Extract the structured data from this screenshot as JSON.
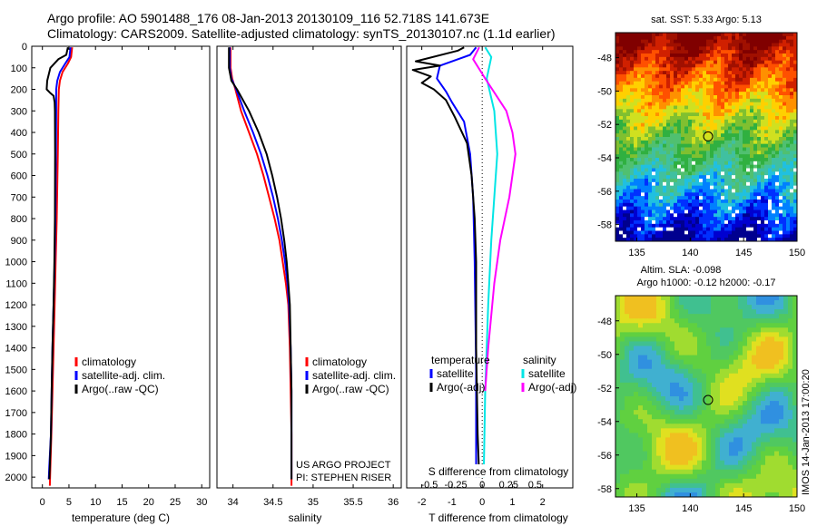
{
  "title_line1": "Argo profile: AO 5901488_176 08-Jan-2013 20130109_116 52.718S 141.673E",
  "title_line2": "Climatology: CARS2009. Satellite-adjusted climatology: synTS_20130107.nc (1.1d earlier)",
  "colors": {
    "climatology": "#ff0000",
    "satellite": "#0000ff",
    "argo": "#000000",
    "sal_satellite": "#00e5e5",
    "sal_argo": "#ff00ff"
  },
  "chart_data": [
    {
      "type": "line",
      "id": "temperature",
      "xlabel": "temperature (deg C)",
      "ylabel": "",
      "xlim": [
        -2,
        31.5
      ],
      "ylim": [
        0,
        2050
      ],
      "y_reversed": true,
      "xticks": [
        0,
        5,
        10,
        15,
        20,
        25,
        30
      ],
      "yticks": [
        0,
        100,
        200,
        300,
        400,
        500,
        600,
        700,
        800,
        900,
        1000,
        1100,
        1200,
        1300,
        1400,
        1500,
        1600,
        1700,
        1800,
        1900,
        2000
      ],
      "legend": [
        "climatology",
        "satellite-adj. clim.",
        "Argo(..raw -QC)"
      ],
      "series": [
        {
          "name": "climatology",
          "color": "#ff0000",
          "points": [
            [
              5.6,
              5
            ],
            [
              5.4,
              50
            ],
            [
              4.8,
              80
            ],
            [
              3.8,
              120
            ],
            [
              3.3,
              160
            ],
            [
              3.1,
              200
            ],
            [
              3.0,
              300
            ],
            [
              2.9,
              500
            ],
            [
              2.7,
              800
            ],
            [
              2.5,
              1000
            ],
            [
              2.3,
              1200
            ],
            [
              2.1,
              1400
            ],
            [
              1.9,
              1600
            ],
            [
              1.7,
              1800
            ],
            [
              1.5,
              1950
            ],
            [
              1.4,
              2040
            ]
          ]
        },
        {
          "name": "satellite-adj. clim.",
          "color": "#0000ff",
          "points": [
            [
              5.3,
              5
            ],
            [
              5.1,
              50
            ],
            [
              4.3,
              80
            ],
            [
              3.3,
              120
            ],
            [
              2.8,
              160
            ],
            [
              2.6,
              200
            ],
            [
              2.6,
              300
            ],
            [
              2.55,
              500
            ],
            [
              2.45,
              800
            ],
            [
              2.3,
              1000
            ],
            [
              2.1,
              1200
            ],
            [
              1.9,
              1400
            ],
            [
              1.75,
              1600
            ],
            [
              1.6,
              1800
            ],
            [
              1.3,
              1950
            ],
            [
              1.2,
              2010
            ]
          ]
        },
        {
          "name": "Argo(..raw -QC)",
          "color": "#000000",
          "points": [
            [
              4.8,
              5
            ],
            [
              4.5,
              40
            ],
            [
              3.0,
              60
            ],
            [
              1.5,
              100
            ],
            [
              0.9,
              160
            ],
            [
              0.8,
              200
            ],
            [
              1.4,
              215
            ],
            [
              2.1,
              230
            ],
            [
              2.3,
              260
            ],
            [
              2.35,
              300
            ],
            [
              2.4,
              500
            ],
            [
              2.35,
              800
            ],
            [
              2.25,
              1000
            ],
            [
              2.1,
              1200
            ],
            [
              1.9,
              1400
            ],
            [
              1.75,
              1600
            ],
            [
              1.6,
              1800
            ],
            [
              1.4,
              1950
            ],
            [
              1.3,
              2010
            ]
          ]
        }
      ]
    },
    {
      "type": "line",
      "id": "salinity",
      "xlabel": "salinity",
      "ylabel": "",
      "xlim": [
        33.8,
        36.1
      ],
      "ylim": [
        0,
        2050
      ],
      "y_reversed": true,
      "xticks": [
        34,
        34.5,
        35,
        35.5,
        36
      ],
      "xticklabels": [
        "34",
        "34.5",
        "35",
        "35.5",
        "36"
      ],
      "legend": [
        "climatology",
        "satellite-adj. clim.",
        "Argo(..raw -QC)"
      ],
      "annotations": [
        "US ARGO PROJECT",
        "PI: STEPHEN RISER"
      ],
      "series": [
        {
          "name": "climatology",
          "color": "#ff0000",
          "points": [
            [
              33.97,
              5
            ],
            [
              33.97,
              100
            ],
            [
              33.99,
              150
            ],
            [
              34.03,
              200
            ],
            [
              34.1,
              300
            ],
            [
              34.2,
              400
            ],
            [
              34.3,
              500
            ],
            [
              34.38,
              600
            ],
            [
              34.45,
              700
            ],
            [
              34.52,
              800
            ],
            [
              34.58,
              900
            ],
            [
              34.62,
              1000
            ],
            [
              34.66,
              1100
            ],
            [
              34.69,
              1200
            ],
            [
              34.71,
              1400
            ],
            [
              34.72,
              1600
            ],
            [
              34.73,
              1800
            ],
            [
              34.73,
              2040
            ]
          ]
        },
        {
          "name": "satellite-adj. clim.",
          "color": "#0000ff",
          "points": [
            [
              33.96,
              5
            ],
            [
              33.96,
              100
            ],
            [
              33.98,
              150
            ],
            [
              34.04,
              200
            ],
            [
              34.14,
              300
            ],
            [
              34.25,
              400
            ],
            [
              34.35,
              500
            ],
            [
              34.43,
              600
            ],
            [
              34.5,
              700
            ],
            [
              34.56,
              800
            ],
            [
              34.61,
              900
            ],
            [
              34.65,
              1000
            ],
            [
              34.68,
              1100
            ],
            [
              34.7,
              1200
            ],
            [
              34.72,
              1400
            ],
            [
              34.73,
              1600
            ],
            [
              34.73,
              1800
            ],
            [
              34.73,
              2010
            ]
          ]
        },
        {
          "name": "Argo(..raw -QC)",
          "color": "#000000",
          "points": [
            [
              33.95,
              5
            ],
            [
              33.95,
              100
            ],
            [
              33.98,
              160
            ],
            [
              34.05,
              200
            ],
            [
              34.2,
              300
            ],
            [
              34.32,
              400
            ],
            [
              34.42,
              500
            ],
            [
              34.49,
              600
            ],
            [
              34.55,
              700
            ],
            [
              34.6,
              800
            ],
            [
              34.64,
              900
            ],
            [
              34.67,
              1000
            ],
            [
              34.69,
              1100
            ],
            [
              34.71,
              1200
            ],
            [
              34.72,
              1400
            ],
            [
              34.73,
              1600
            ],
            [
              34.73,
              1800
            ],
            [
              34.73,
              2010
            ]
          ]
        }
      ]
    },
    {
      "type": "line",
      "id": "difference",
      "xlabel": "T difference from climatology",
      "ylabel": "",
      "xlim": [
        -2.5,
        3
      ],
      "ylim": [
        0,
        2050
      ],
      "y_reversed": true,
      "xticks": [
        -2,
        -1,
        0,
        1,
        2
      ],
      "top_axis_label": "S difference from climatology",
      "s_ticks": [
        {
          "x": -1.75,
          "label": "-0.5"
        },
        {
          "x": -0.875,
          "label": "-0.25"
        },
        {
          "x": 0,
          "label": "0"
        },
        {
          "x": 0.875,
          "label": "0.25"
        },
        {
          "x": 1.75,
          "label": "0.5"
        }
      ],
      "legend_temperature": [
        "temperature",
        "satellite",
        "Argo(-adj)"
      ],
      "legend_salinity": [
        "salinity",
        "satellite",
        "Argo(-adj)"
      ],
      "series": [
        {
          "name": "temperature satellite",
          "color": "#0000ff",
          "points": [
            [
              -0.2,
              5
            ],
            [
              -0.4,
              40
            ],
            [
              -1.4,
              90
            ],
            [
              -1.5,
              150
            ],
            [
              -1.2,
              210
            ],
            [
              -1.0,
              260
            ],
            [
              -0.6,
              350
            ],
            [
              -0.4,
              500
            ],
            [
              -0.3,
              700
            ],
            [
              -0.25,
              1000
            ],
            [
              -0.2,
              1500
            ],
            [
              -0.2,
              2000
            ]
          ]
        },
        {
          "name": "temperature Argo(-adj)",
          "color": "#000000",
          "points": [
            [
              -0.6,
              5
            ],
            [
              -0.8,
              20
            ],
            [
              -2.2,
              70
            ],
            [
              -1.4,
              90
            ],
            [
              -2.3,
              110
            ],
            [
              -1.7,
              140
            ],
            [
              -2.0,
              170
            ],
            [
              -1.6,
              200
            ],
            [
              -1.2,
              250
            ],
            [
              -0.9,
              330
            ],
            [
              -0.5,
              450
            ],
            [
              -0.35,
              600
            ],
            [
              -0.25,
              800
            ],
            [
              -0.2,
              1000
            ],
            [
              -0.2,
              1400
            ],
            [
              -0.15,
              1800
            ],
            [
              -0.1,
              2000
            ]
          ]
        },
        {
          "name": "salinity satellite",
          "color": "#00e5e5",
          "points": [
            [
              0.1,
              5
            ],
            [
              0.3,
              50
            ],
            [
              0.15,
              150
            ],
            [
              0.4,
              300
            ],
            [
              0.5,
              500
            ],
            [
              0.4,
              700
            ],
            [
              0.3,
              900
            ],
            [
              0.2,
              1200
            ],
            [
              0.1,
              1600
            ],
            [
              0.05,
              2000
            ]
          ]
        },
        {
          "name": "salinity Argo(-adj)",
          "color": "#ff00ff",
          "points": [
            [
              -0.1,
              5
            ],
            [
              -0.3,
              60
            ],
            [
              0.1,
              150
            ],
            [
              0.8,
              300
            ],
            [
              1.0,
              400
            ],
            [
              1.1,
              500
            ],
            [
              0.9,
              700
            ],
            [
              0.6,
              900
            ],
            [
              0.4,
              1100
            ],
            [
              0.2,
              1400
            ],
            [
              0.1,
              1600
            ]
          ]
        }
      ]
    },
    {
      "type": "heatmap",
      "id": "sst",
      "title": "sat. SST: 5.33 Argo: 5.13",
      "xlim": [
        133,
        150
      ],
      "ylim": [
        -59,
        -46.5
      ],
      "xticks": [
        135,
        140,
        145,
        150
      ],
      "yticks": [
        -48,
        -50,
        -52,
        -54,
        -56,
        -58
      ],
      "marker": [
        141.673,
        -52.718
      ]
    },
    {
      "type": "heatmap",
      "id": "sla",
      "title_line1": "Altim. SLA: -0.098",
      "title_line2": "Argo h1000: -0.12 h2000: -0.17",
      "xlim": [
        133,
        150
      ],
      "ylim": [
        -58.5,
        -46.5
      ],
      "xticks": [
        135,
        140,
        145,
        150
      ],
      "yticks": [
        -48,
        -50,
        -52,
        -54,
        -56,
        -58
      ],
      "marker": [
        141.673,
        -52.718
      ],
      "side_text": "IMOS 14-Jan-2013 17:00:20"
    }
  ]
}
